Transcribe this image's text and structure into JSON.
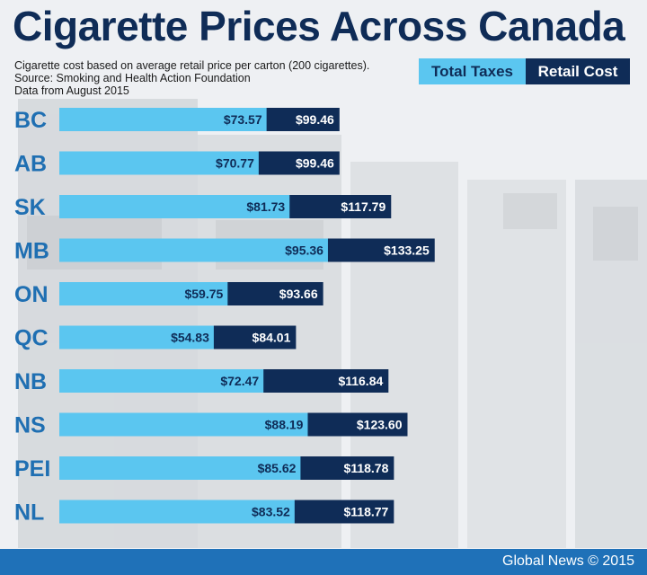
{
  "title": "Cigarette Prices Across Canada",
  "subtitle_lines": [
    "Cigarette cost based on average retail price per carton (200 cigarettes).",
    "Source: Smoking and Health Action Foundation",
    "Data from August 2015"
  ],
  "legend": {
    "taxes": "Total Taxes",
    "retail": "Retail Cost"
  },
  "footer": "Global News © 2015",
  "colors": {
    "taxes": "#5bc6f0",
    "retail": "#0f2c57",
    "province_label": "#1f6fb2",
    "footer": "#1f71b8"
  },
  "chart_data": {
    "type": "bar",
    "orientation": "horizontal",
    "categories": [
      "BC",
      "AB",
      "SK",
      "MB",
      "ON",
      "QC",
      "NB",
      "NS",
      "PEI",
      "NL"
    ],
    "series": [
      {
        "name": "Total Taxes",
        "values": [
          73.57,
          70.77,
          81.73,
          95.36,
          59.75,
          54.83,
          72.47,
          88.19,
          85.62,
          83.52
        ]
      },
      {
        "name": "Retail Cost",
        "values": [
          99.46,
          99.46,
          117.79,
          133.25,
          93.66,
          84.01,
          116.84,
          123.6,
          118.78,
          118.77
        ]
      }
    ],
    "value_labels": {
      "Total Taxes": [
        "$73.57",
        "$70.77",
        "$81.73",
        "$95.36",
        "$59.75",
        "$54.83",
        "$72.47",
        "$88.19",
        "$85.62",
        "$83.52"
      ],
      "Retail Cost": [
        "$99.46",
        "$99.46",
        "$117.79",
        "$133.25",
        "$93.66",
        "$84.01",
        "$116.84",
        "$123.60",
        "$118.78",
        "$118.77"
      ]
    },
    "xlim": [
      0,
      140
    ],
    "grid": false,
    "legend_position": "top-right"
  }
}
